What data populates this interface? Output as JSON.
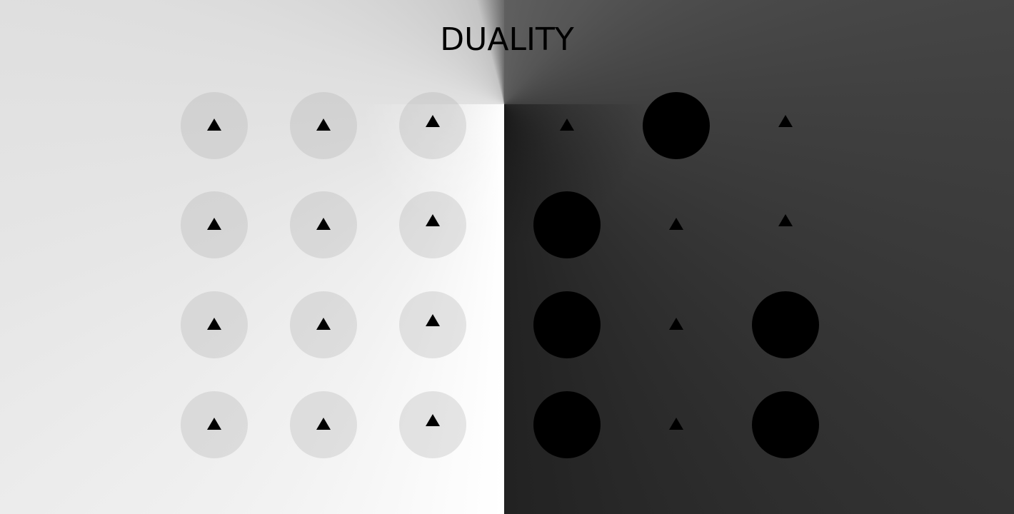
{
  "title": "DUALITY",
  "colors": {
    "text": "#000000",
    "light_side": "#ffffff",
    "dark_side": "#2b2b2b",
    "disc_dark": "#000000",
    "disc_light": "#d0d0d0",
    "marker": "#000000"
  },
  "boards": {
    "light": {
      "rows": [
        [
          {
            "piece": "empty-disc",
            "marker": "triangle-icon"
          },
          {
            "piece": "empty-disc",
            "marker": "triangle-icon"
          },
          {
            "piece": "empty-disc",
            "marker": "triangle-icon"
          }
        ],
        [
          {
            "piece": "empty-disc",
            "marker": "triangle-icon"
          },
          {
            "piece": "empty-disc",
            "marker": "triangle-icon"
          },
          {
            "piece": "empty-disc",
            "marker": "triangle-icon"
          }
        ],
        [
          {
            "piece": "empty-disc",
            "marker": "triangle-icon"
          },
          {
            "piece": "empty-disc",
            "marker": "triangle-icon"
          },
          {
            "piece": "empty-disc",
            "marker": "triangle-icon"
          }
        ],
        [
          {
            "piece": "empty-disc",
            "marker": "triangle-icon"
          },
          {
            "piece": "empty-disc",
            "marker": "triangle-icon"
          },
          {
            "piece": "empty-disc",
            "marker": "triangle-icon"
          }
        ]
      ]
    },
    "dark": {
      "rows": [
        [
          {
            "piece": "none",
            "marker": "triangle-icon"
          },
          {
            "piece": "black-disc",
            "marker": "none"
          },
          {
            "piece": "none",
            "marker": "triangle-icon"
          }
        ],
        [
          {
            "piece": "black-disc",
            "marker": "none"
          },
          {
            "piece": "none",
            "marker": "triangle-icon"
          },
          {
            "piece": "none",
            "marker": "triangle-icon"
          }
        ],
        [
          {
            "piece": "black-disc",
            "marker": "none"
          },
          {
            "piece": "none",
            "marker": "triangle-icon"
          },
          {
            "piece": "black-disc",
            "marker": "none"
          }
        ],
        [
          {
            "piece": "black-disc",
            "marker": "none"
          },
          {
            "piece": "none",
            "marker": "triangle-icon"
          },
          {
            "piece": "black-disc",
            "marker": "none"
          }
        ]
      ]
    }
  }
}
